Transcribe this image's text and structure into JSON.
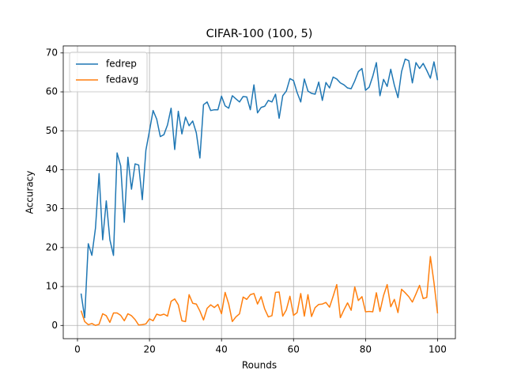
{
  "chart_data": {
    "type": "line",
    "title": "CIFAR-100 (100, 5)",
    "x_label": "Rounds",
    "y_label": "Accuracy",
    "x": [
      1,
      2,
      3,
      4,
      5,
      6,
      7,
      8,
      9,
      10,
      11,
      12,
      13,
      14,
      15,
      16,
      17,
      18,
      19,
      20,
      21,
      22,
      23,
      24,
      25,
      26,
      27,
      28,
      29,
      30,
      31,
      32,
      33,
      34,
      35,
      36,
      37,
      38,
      39,
      40,
      41,
      42,
      43,
      44,
      45,
      46,
      47,
      48,
      49,
      50,
      51,
      52,
      53,
      54,
      55,
      56,
      57,
      58,
      59,
      60,
      61,
      62,
      63,
      64,
      65,
      66,
      67,
      68,
      69,
      70,
      71,
      72,
      73,
      74,
      75,
      76,
      77,
      78,
      79,
      80,
      81,
      82,
      83,
      84,
      85,
      86,
      87,
      88,
      89,
      90,
      91,
      92,
      93,
      94,
      95,
      96,
      97,
      98,
      99,
      100
    ],
    "series": [
      {
        "name": "fedrep",
        "color": "#1f77b4",
        "values": [
          8.2,
          2,
          21,
          18,
          25,
          39,
          22,
          32,
          22,
          18,
          44.3,
          41,
          26.5,
          43.2,
          35,
          41.5,
          41.2,
          32.3,
          45,
          50,
          55.2,
          53,
          48.5,
          49,
          51.5,
          55.8,
          45.2,
          55,
          49.2,
          53.5,
          51.3,
          52.5,
          49.5,
          43,
          56.7,
          57.4,
          55.2,
          55.4,
          55.4,
          58.9,
          56.4,
          55.8,
          59,
          58.2,
          57.4,
          58.8,
          58.7,
          55.4,
          61.8,
          54.6,
          56,
          56.3,
          57.8,
          57.4,
          59.4,
          53.2,
          59,
          60.2,
          63.4,
          62.9,
          59.8,
          57.4,
          63.3,
          60.2,
          59.6,
          59.4,
          62.5,
          57.8,
          62.4,
          61,
          63.8,
          63.3,
          62.3,
          61.8,
          61,
          60.8,
          62.8,
          65.2,
          66,
          60.4,
          61.2,
          64,
          67.5,
          59,
          63.2,
          61.4,
          65.8,
          61.7,
          58.5,
          65.2,
          68.4,
          68,
          62.3,
          67.5,
          66,
          67.3,
          65.5,
          63.5,
          67.7,
          63
        ]
      },
      {
        "name": "fedavg",
        "color": "#ff7f0e",
        "values": [
          3.8,
          1,
          0.2,
          0.5,
          0,
          0.3,
          3,
          2.5,
          0.8,
          3.2,
          3.2,
          2.6,
          1.2,
          3,
          2.5,
          1.5,
          0.1,
          0.2,
          0.4,
          1.7,
          1.2,
          2.9,
          2.6,
          2.9,
          2.4,
          6.2,
          6.8,
          5.3,
          1.2,
          1,
          7.9,
          5.7,
          5.5,
          3.7,
          1.4,
          4.4,
          5.3,
          4.6,
          5.4,
          3,
          8.5,
          5.5,
          1,
          2.2,
          3,
          7.3,
          6.7,
          7.9,
          8.2,
          5.5,
          7.4,
          4.2,
          2.2,
          2.5,
          8.5,
          8.6,
          2.4,
          4,
          7.5,
          2.6,
          3.3,
          8.2,
          2.4,
          7.9,
          2.3,
          4.6,
          5.4,
          5.5,
          5.9,
          4.7,
          7.5,
          10.5,
          2,
          4,
          5.8,
          3.9,
          9.9,
          6.4,
          7.4,
          3.5,
          3.6,
          3.5,
          8.4,
          3.6,
          7.7,
          10.5,
          4.8,
          6.7,
          3.3,
          9.3,
          8.4,
          7.4,
          6,
          8.1,
          10.3,
          6.9,
          7.2,
          17.7,
          11,
          3.1
        ]
      }
    ],
    "xlim": [
      -3.95,
      104.95
    ],
    "xticks": [
      0,
      20,
      40,
      60,
      80,
      100
    ],
    "ylim": [
      -3.4,
      71.8
    ],
    "yticks": [
      0,
      10,
      20,
      30,
      40,
      50,
      60,
      70
    ],
    "grid": true,
    "legend": "upper left"
  }
}
